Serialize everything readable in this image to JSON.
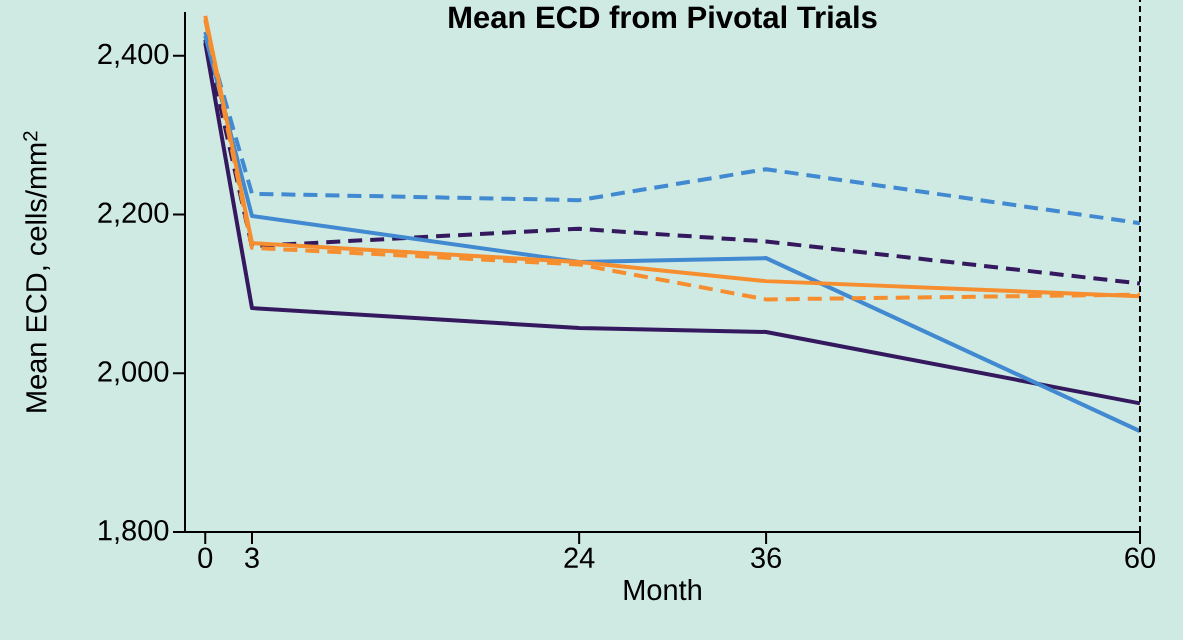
{
  "chart_data": {
    "type": "line",
    "title": "Mean ECD from Pivotal Trials",
    "xlabel": "Month",
    "ylabel": "Mean ECD, cells/mm$^{2}$",
    "x": [
      0,
      3,
      24,
      36,
      60
    ],
    "series": [
      {
        "color": "#35195e",
        "line_style": "solid",
        "values": [
          2416,
          2082,
          2057,
          2052,
          1962
        ]
      },
      {
        "color": "#35195e",
        "line_style": "dashed",
        "values": [
          2420,
          2160,
          2182,
          2166,
          2113
        ]
      },
      {
        "color": "#4189d0",
        "line_style": "solid",
        "values": [
          2425,
          2198,
          2140,
          2145,
          1927
        ]
      },
      {
        "color": "#4189d0",
        "line_style": "dashed",
        "values": [
          2430,
          2226,
          2218,
          2257,
          2189
        ]
      },
      {
        "color": "#f68e2f",
        "line_style": "solid",
        "values": [
          2450,
          2164,
          2140,
          2116,
          2097
        ]
      },
      {
        "color": "#f68e2f",
        "line_style": "dashed",
        "values": [
          2445,
          2158,
          2137,
          2093,
          2099
        ]
      }
    ],
    "xlim": [
      -1.3,
      60
    ],
    "ylim": [
      1800,
      2455
    ],
    "xticks": [
      0,
      3,
      24,
      36,
      60
    ],
    "yticks": [
      {
        "value": 1800,
        "label": "1,800"
      },
      {
        "value": 2000,
        "label": "2,000"
      },
      {
        "value": 2200,
        "label": "2,200"
      },
      {
        "value": 2400,
        "label": "2,400"
      }
    ],
    "ref_lines": [
      {
        "axis": "x",
        "value": 60,
        "color": "#000000",
        "line_style": "dashed"
      }
    ],
    "grid": false
  }
}
